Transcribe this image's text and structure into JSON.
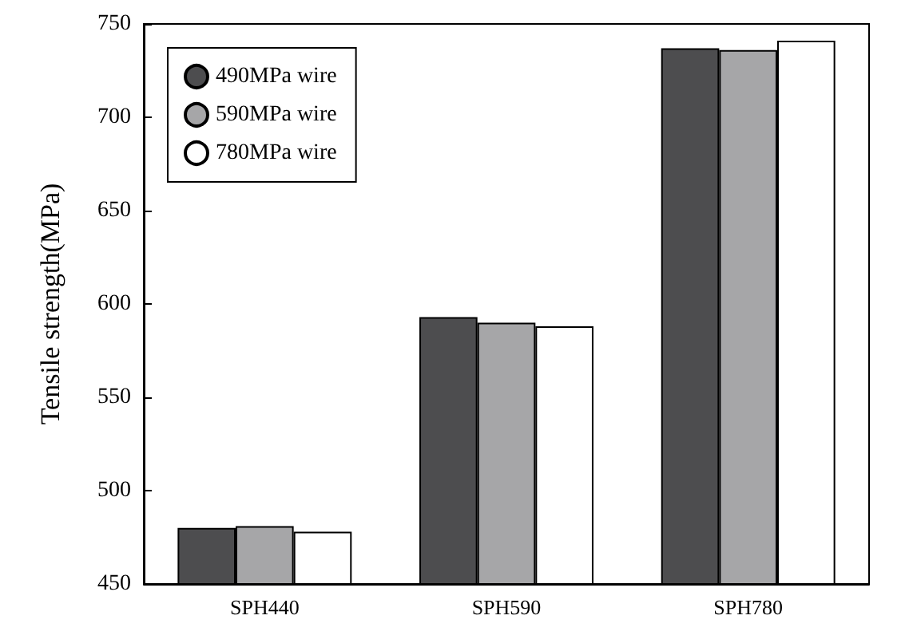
{
  "chart_data": {
    "type": "bar",
    "ylabel": "Tensile strength(MPa)",
    "categories": [
      "SPH440",
      "SPH590",
      "SPH780"
    ],
    "series": [
      {
        "name": "490MPa wire",
        "color": "#4d4d4f",
        "values": [
          480,
          593,
          737
        ]
      },
      {
        "name": "590MPa wire",
        "color": "#a6a6a8",
        "values": [
          481,
          590,
          736
        ]
      },
      {
        "name": "780MPa wire",
        "color": "#ffffff",
        "values": [
          478,
          588,
          741
        ]
      }
    ],
    "ylim": [
      450,
      750
    ],
    "yticks": [
      450,
      500,
      550,
      600,
      650,
      700,
      750
    ],
    "grid": false,
    "legend": "top left"
  }
}
